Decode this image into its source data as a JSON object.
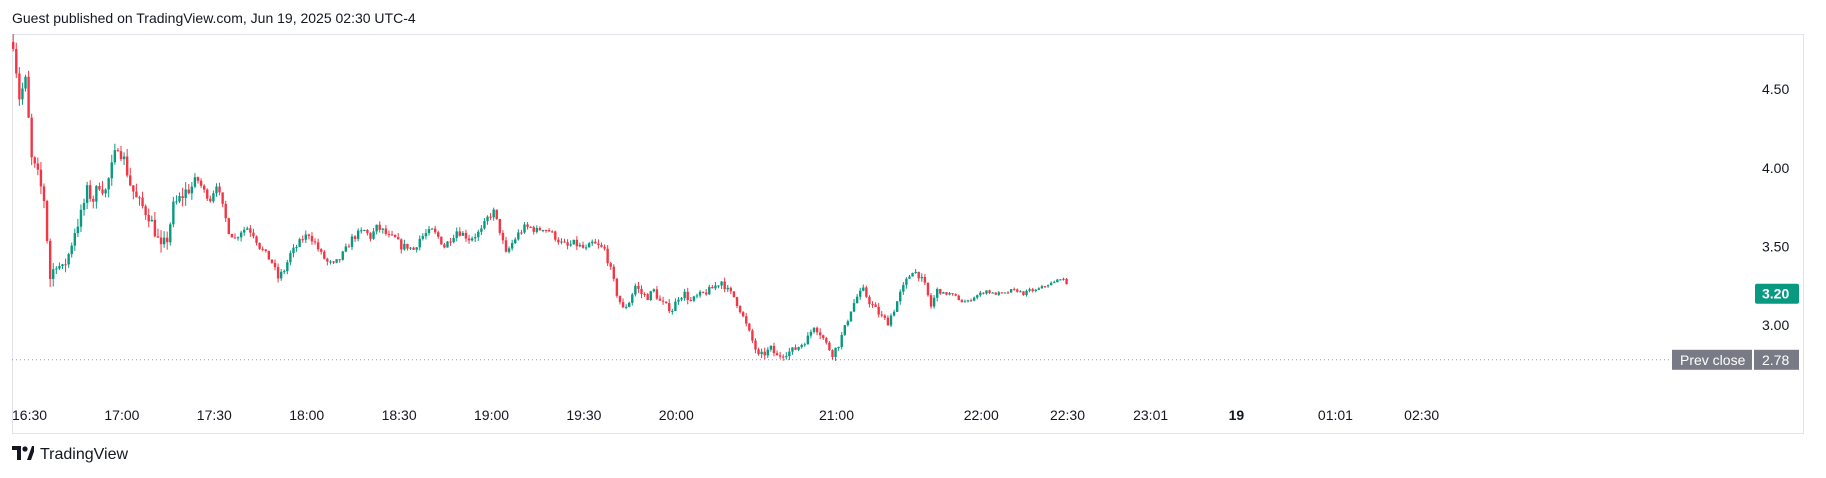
{
  "header": {
    "published_text": "Guest published on TradingView.com, Jun 19, 2025 02:30 UTC-4"
  },
  "footer": {
    "brand": "TradingView",
    "logo_icon": "tradingview-logo-icon"
  },
  "colors": {
    "up": "#089981",
    "down": "#f23645",
    "grid": "#e0e3eb",
    "prev_close_bg": "#787b86",
    "last_price_bg": "#089981",
    "prev_close_line": "#9598a1"
  },
  "chart_data": {
    "type": "candlestick",
    "y_axis_ticks": [
      "4.50",
      "4.00",
      "3.50",
      "3.00"
    ],
    "y_tick_values": [
      4.5,
      4.0,
      3.5,
      3.0
    ],
    "ylim": [
      2.55,
      4.85
    ],
    "x_axis_ticks": [
      {
        "label": "16:30",
        "slot": 0,
        "bold": false
      },
      {
        "label": "17:00",
        "slot": 30,
        "bold": false
      },
      {
        "label": "17:30",
        "slot": 60,
        "bold": false
      },
      {
        "label": "18:00",
        "slot": 90,
        "bold": false
      },
      {
        "label": "18:30",
        "slot": 120,
        "bold": false
      },
      {
        "label": "19:00",
        "slot": 150,
        "bold": false
      },
      {
        "label": "19:30",
        "slot": 180,
        "bold": false
      },
      {
        "label": "20:00",
        "slot": 210,
        "bold": false
      },
      {
        "label": "21:00",
        "slot": 262,
        "bold": false
      },
      {
        "label": "22:00",
        "slot": 309,
        "bold": false
      },
      {
        "label": "22:30",
        "slot": 337,
        "bold": false
      },
      {
        "label": "23:01",
        "slot": 364,
        "bold": false
      },
      {
        "label": "19",
        "slot": 395,
        "bold": true
      },
      {
        "label": "01:01",
        "slot": 424,
        "bold": false
      },
      {
        "label": "02:30",
        "slot": 452,
        "bold": false
      }
    ],
    "last_price": {
      "value": 3.2,
      "label": "3.20"
    },
    "prev_close": {
      "value": 2.78,
      "label": "2.78",
      "title": "Prev close"
    },
    "anchors": [
      [
        0,
        4.8
      ],
      [
        2,
        4.45
      ],
      [
        4,
        4.55
      ],
      [
        6,
        4.05
      ],
      [
        8,
        3.95
      ],
      [
        10,
        3.8
      ],
      [
        12,
        3.3
      ],
      [
        14,
        3.4
      ],
      [
        16,
        3.35
      ],
      [
        18,
        3.45
      ],
      [
        20,
        3.6
      ],
      [
        22,
        3.7
      ],
      [
        24,
        3.85
      ],
      [
        26,
        3.8
      ],
      [
        28,
        3.9
      ],
      [
        30,
        3.85
      ],
      [
        32,
        4.0
      ],
      [
        34,
        4.15
      ],
      [
        36,
        4.05
      ],
      [
        38,
        3.9
      ],
      [
        40,
        3.8
      ],
      [
        42,
        3.75
      ],
      [
        44,
        3.7
      ],
      [
        46,
        3.6
      ],
      [
        48,
        3.48
      ],
      [
        50,
        3.55
      ],
      [
        52,
        3.75
      ],
      [
        54,
        3.8
      ],
      [
        56,
        3.85
      ],
      [
        58,
        3.88
      ],
      [
        60,
        3.92
      ],
      [
        62,
        3.85
      ],
      [
        64,
        3.8
      ],
      [
        66,
        3.9
      ],
      [
        68,
        3.75
      ],
      [
        70,
        3.6
      ],
      [
        72,
        3.55
      ],
      [
        74,
        3.6
      ],
      [
        76,
        3.62
      ],
      [
        78,
        3.58
      ],
      [
        80,
        3.5
      ],
      [
        82,
        3.45
      ],
      [
        84,
        3.4
      ],
      [
        86,
        3.3
      ],
      [
        88,
        3.35
      ],
      [
        90,
        3.45
      ],
      [
        92,
        3.5
      ],
      [
        94,
        3.55
      ],
      [
        96,
        3.58
      ],
      [
        98,
        3.52
      ],
      [
        100,
        3.45
      ],
      [
        102,
        3.4
      ],
      [
        104,
        3.38
      ],
      [
        106,
        3.42
      ],
      [
        108,
        3.48
      ],
      [
        110,
        3.55
      ],
      [
        112,
        3.58
      ],
      [
        114,
        3.6
      ],
      [
        116,
        3.56
      ],
      [
        118,
        3.62
      ],
      [
        120,
        3.6
      ],
      [
        122,
        3.56
      ],
      [
        124,
        3.55
      ],
      [
        126,
        3.5
      ],
      [
        128,
        3.5
      ],
      [
        130,
        3.48
      ],
      [
        132,
        3.55
      ],
      [
        134,
        3.58
      ],
      [
        136,
        3.6
      ],
      [
        138,
        3.56
      ],
      [
        140,
        3.5
      ],
      [
        142,
        3.55
      ],
      [
        144,
        3.6
      ],
      [
        146,
        3.58
      ],
      [
        148,
        3.55
      ],
      [
        150,
        3.57
      ],
      [
        152,
        3.6
      ],
      [
        154,
        3.68
      ],
      [
        156,
        3.72
      ],
      [
        158,
        3.6
      ],
      [
        160,
        3.45
      ],
      [
        162,
        3.52
      ],
      [
        164,
        3.58
      ],
      [
        166,
        3.62
      ],
      [
        168,
        3.62
      ],
      [
        170,
        3.6
      ],
      [
        172,
        3.62
      ],
      [
        174,
        3.6
      ],
      [
        176,
        3.56
      ],
      [
        178,
        3.52
      ],
      [
        180,
        3.5
      ],
      [
        182,
        3.52
      ],
      [
        184,
        3.5
      ],
      [
        186,
        3.48
      ],
      [
        188,
        3.52
      ],
      [
        190,
        3.5
      ],
      [
        192,
        3.48
      ],
      [
        194,
        3.35
      ],
      [
        196,
        3.2
      ],
      [
        198,
        3.1
      ],
      [
        200,
        3.15
      ],
      [
        202,
        3.25
      ],
      [
        204,
        3.2
      ],
      [
        206,
        3.18
      ],
      [
        208,
        3.22
      ],
      [
        210,
        3.15
      ],
      [
        212,
        3.12
      ],
      [
        214,
        3.1
      ],
      [
        216,
        3.18
      ],
      [
        218,
        3.2
      ],
      [
        220,
        3.15
      ],
      [
        222,
        3.18
      ],
      [
        224,
        3.2
      ],
      [
        226,
        3.22
      ],
      [
        228,
        3.25
      ],
      [
        230,
        3.28
      ],
      [
        232,
        3.22
      ],
      [
        234,
        3.18
      ],
      [
        236,
        3.1
      ],
      [
        238,
        3.0
      ],
      [
        240,
        2.9
      ],
      [
        242,
        2.8
      ],
      [
        244,
        2.82
      ],
      [
        246,
        2.85
      ],
      [
        248,
        2.8
      ],
      [
        250,
        2.82
      ],
      [
        252,
        2.83
      ],
      [
        254,
        2.85
      ],
      [
        256,
        2.88
      ],
      [
        258,
        2.92
      ],
      [
        260,
        3.0
      ],
      [
        262,
        2.95
      ],
      [
        264,
        2.88
      ],
      [
        266,
        2.82
      ],
      [
        268,
        2.88
      ],
      [
        270,
        2.98
      ],
      [
        272,
        3.1
      ],
      [
        274,
        3.18
      ],
      [
        276,
        3.22
      ],
      [
        278,
        3.15
      ],
      [
        280,
        3.1
      ],
      [
        282,
        3.05
      ],
      [
        284,
        3.02
      ],
      [
        286,
        3.1
      ],
      [
        288,
        3.2
      ],
      [
        290,
        3.28
      ],
      [
        292,
        3.35
      ],
      [
        294,
        3.32
      ],
      [
        296,
        3.25
      ],
      [
        298,
        3.12
      ],
      [
        300,
        3.22
      ],
      [
        302,
        3.2
      ],
      [
        304,
        3.2
      ],
      [
        306,
        3.18
      ],
      [
        308,
        3.15
      ],
      [
        310,
        3.15
      ],
      [
        312,
        3.18
      ],
      [
        314,
        3.2
      ],
      [
        316,
        3.22
      ],
      [
        318,
        3.2
      ],
      [
        320,
        3.2
      ],
      [
        322,
        3.2
      ],
      [
        324,
        3.22
      ],
      [
        326,
        3.22
      ],
      [
        328,
        3.2
      ],
      [
        330,
        3.22
      ],
      [
        332,
        3.22
      ],
      [
        334,
        3.24
      ],
      [
        336,
        3.26
      ],
      [
        338,
        3.27
      ],
      [
        340,
        3.3
      ],
      [
        342,
        3.27
      ]
    ]
  }
}
